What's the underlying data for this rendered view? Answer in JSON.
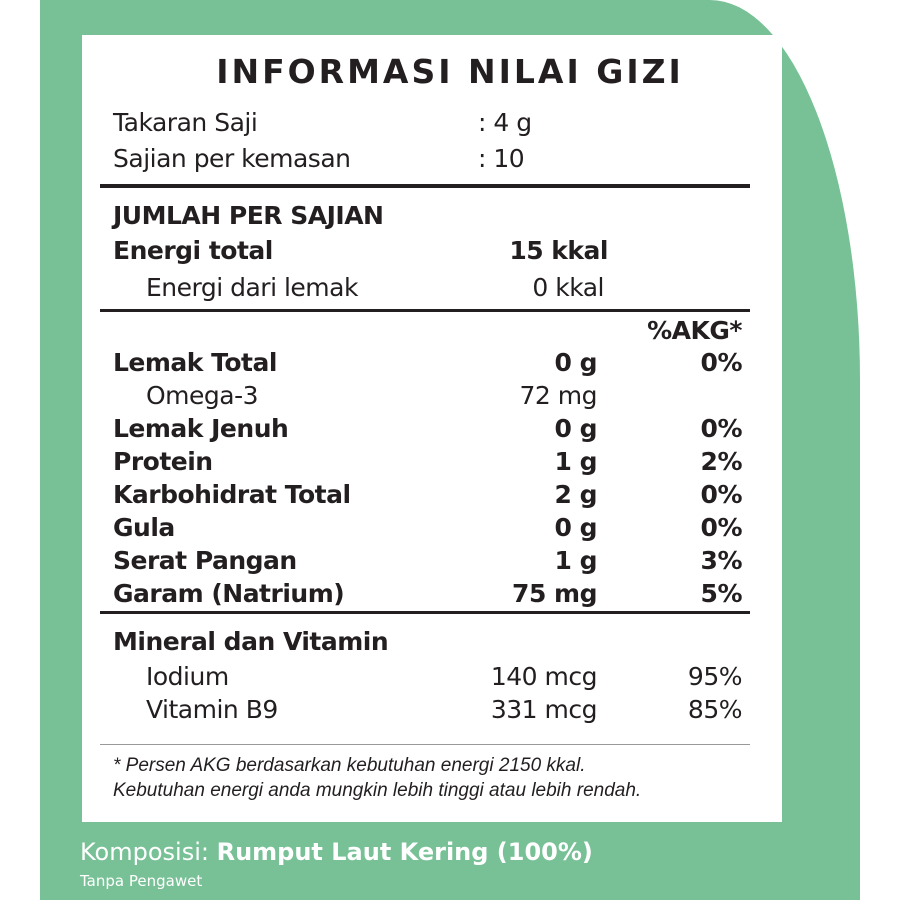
{
  "title": "INFORMASI NILAI GIZI",
  "serving": [
    {
      "label": "Takaran Saji",
      "value": ": 4 g"
    },
    {
      "label": "Sajian per kemasan",
      "value": ": 10"
    }
  ],
  "amount_header": "JUMLAH PER SAJIAN",
  "energy_total": {
    "label": "Energi total",
    "value": "15 kkal"
  },
  "energy_fat": {
    "label": "Energi dari lemak",
    "value": "0 kkal"
  },
  "akg_header": "%AKG*",
  "nutrients": [
    {
      "label": "Lemak Total",
      "value": "0 g",
      "pct": "0%",
      "bold": true
    },
    {
      "label": "Omega-3",
      "value": "72 mg",
      "pct": "",
      "bold": false
    },
    {
      "label": "Lemak Jenuh",
      "value": "0 g",
      "pct": "0%",
      "bold": true
    },
    {
      "label": "Protein",
      "value": "1 g",
      "pct": "2%",
      "bold": true
    },
    {
      "label": "Karbohidrat Total",
      "value": "2 g",
      "pct": "0%",
      "bold": true
    },
    {
      "label": "Gula",
      "value": "0 g",
      "pct": "0%",
      "bold": true
    },
    {
      "label": "Serat Pangan",
      "value": "1 g",
      "pct": "3%",
      "bold": true
    },
    {
      "label": "Garam (Natrium)",
      "value": "75 mg",
      "pct": "5%",
      "bold": true
    }
  ],
  "minerals_header": "Mineral dan Vitamin",
  "minerals": [
    {
      "label": "Iodium",
      "value": "140 mcg",
      "pct": "95%"
    },
    {
      "label": "Vitamin B9",
      "value": "331 mcg",
      "pct": "85%"
    }
  ],
  "footnote": [
    "* Persen AKG berdasarkan kebutuhan energi 2150 kkal.",
    "Kebutuhan energi anda mungkin lebih tinggi atau lebih rendah."
  ],
  "composition": {
    "label": "Komposisi: ",
    "value": "Rumput Laut Kering (100%)",
    "note": "Tanpa Pengawet"
  },
  "colors": {
    "green": "#78c196",
    "text": "#231f20"
  }
}
